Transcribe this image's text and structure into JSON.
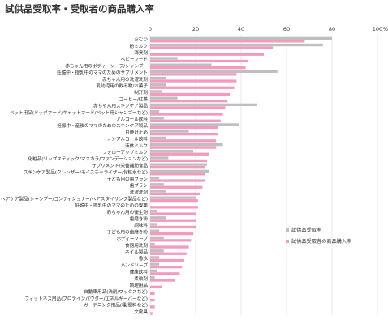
{
  "title": "試供品受取率・受取者の商品購入率",
  "chart_data": {
    "type": "bar",
    "orientation": "horizontal",
    "xlim": [
      0,
      100
    ],
    "x_ticks": [
      "0",
      "20",
      "40",
      "60",
      "80",
      "100"
    ],
    "unit_label": "(%)",
    "grid": true,
    "legend_position": "right",
    "categories": [
      "おむつ",
      "粉ミルク",
      "消臭剤",
      "ベビーフード",
      "赤ちゃん用のボディーソープ/シャンプー",
      "妊娠中・授乳中のママのためのサプリメント",
      "赤ちゃん用の洗濯洗剤",
      "乳幼児用の飲み物/お菓子",
      "制汗剤",
      "コーヒー/紅茶",
      "赤ちゃん用スキンケア製品",
      "ペット用品(ドッグフード/キャットフード/ペット用シャンプーなど)",
      "アルコール飲料",
      "妊娠中・産後のママのためのスキンケア製品",
      "日焼け止め",
      "ノンアルコール飲料",
      "液体ミルク",
      "フォローアップミルク",
      "化粧品(リップスティック/マスカラ/ファンデーションなど)",
      "サプリメント/栄養補助食品",
      "スキンケア製品(クレンザー/モイスチャライザー/化粧水など)",
      "子ども用の歯ブラシ",
      "歯ブラシ",
      "洗濯洗剤",
      "ヘアケア製品(シャンプー/コンディショナー/ヘアスタイリング製品など)",
      "妊娠中・授乳中のママのための胃薬",
      "赤ちゃん用の衛生剤",
      "歯磨き粉",
      "調味料",
      "子ども用の歯磨き粉",
      "ボディーソープ",
      "食器用洗剤",
      "ネイル製品",
      "香水",
      "ハンドソープ",
      "健康飲料",
      "柔軟剤",
      "調理用品",
      "自動車用品(洗剤/ワックスなど)",
      "フィットネス用品(プロテインパウダー/エネルギーバーなど)",
      "ガーデニング用品(種/肥料など)",
      "文房具"
    ],
    "series": [
      {
        "name": "試供品受取率",
        "color": "#bfbfbf",
        "values": [
          80,
          76,
          0,
          12,
          27,
          56,
          7,
          7,
          5,
          12,
          47,
          4,
          6,
          39,
          17,
          7,
          32,
          19,
          8,
          25,
          26,
          4,
          6,
          7,
          20,
          0,
          3,
          7,
          3,
          4,
          6,
          2,
          6,
          4,
          4,
          3,
          2,
          0,
          0,
          0,
          0,
          0
        ]
      },
      {
        "name": "試供品受取者の商品購入率",
        "color": "#f49ac1",
        "values": [
          68,
          54,
          50,
          43,
          42,
          38,
          38,
          37,
          35,
          34,
          33,
          32,
          31,
          30,
          30,
          29,
          29,
          26,
          25,
          24,
          24,
          24,
          23,
          22,
          21,
          21,
          20,
          20,
          20,
          19,
          18,
          17,
          16,
          15,
          14,
          13,
          11,
          5,
          2,
          2,
          2,
          1
        ]
      }
    ]
  }
}
